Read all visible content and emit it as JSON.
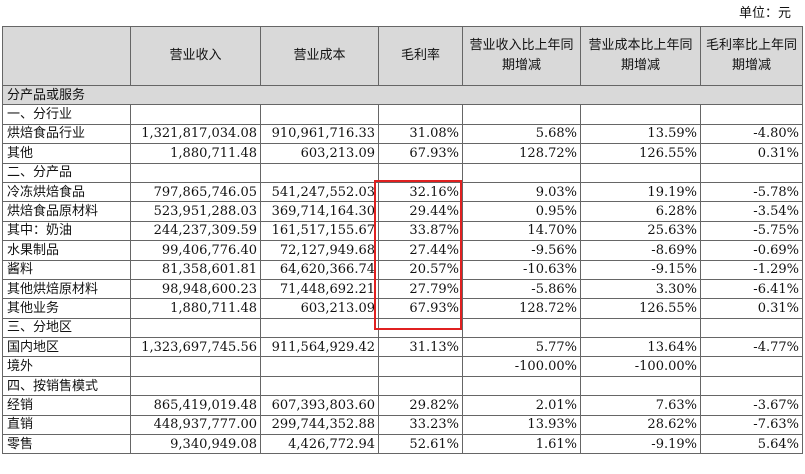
{
  "unit_label": "单位：元",
  "headers": [
    "",
    "营业收入",
    "营业成本",
    "毛利率",
    "营业收入比上年同期增减",
    "营业成本比上年同期增减",
    "毛利率比上年同期增减"
  ],
  "rows": [
    {
      "type": "section",
      "label": "分产品或服务"
    },
    {
      "type": "group",
      "label": "一、分行业"
    },
    {
      "type": "data",
      "cells": [
        "烘焙食品行业",
        "1,321,817,034.08",
        "910,961,716.33",
        "31.08%",
        "5.68%",
        "13.59%",
        "-4.80%"
      ]
    },
    {
      "type": "data",
      "cells": [
        "其他",
        "1,880,711.48",
        "603,213.09",
        "67.93%",
        "128.72%",
        "126.55%",
        "0.31%"
      ]
    },
    {
      "type": "group",
      "label": "二、分产品"
    },
    {
      "type": "data",
      "cells": [
        "冷冻烘焙食品",
        "797,865,746.05",
        "541,247,552.03",
        "32.16%",
        "9.03%",
        "19.19%",
        "-5.78%"
      ]
    },
    {
      "type": "data",
      "cells": [
        "烘焙食品原材料",
        "523,951,288.03",
        "369,714,164.30",
        "29.44%",
        "0.95%",
        "6.28%",
        "-3.54%"
      ]
    },
    {
      "type": "data",
      "cells": [
        "其中：奶油",
        "244,237,309.59",
        "161,517,155.67",
        "33.87%",
        "14.70%",
        "25.63%",
        "-5.75%"
      ]
    },
    {
      "type": "data",
      "cells": [
        "水果制品",
        "99,406,776.40",
        "72,127,949.68",
        "27.44%",
        "-9.56%",
        "-8.69%",
        "-0.69%"
      ]
    },
    {
      "type": "data",
      "cells": [
        "酱料",
        "81,358,601.81",
        "64,620,366.74",
        "20.57%",
        "-10.63%",
        "-9.15%",
        "-1.29%"
      ]
    },
    {
      "type": "data",
      "cells": [
        "其他烘焙原材料",
        "98,948,600.23",
        "71,448,692.21",
        "27.79%",
        "-5.86%",
        "3.30%",
        "-6.41%"
      ]
    },
    {
      "type": "data",
      "cells": [
        "其他业务",
        "1,880,711.48",
        "603,213.09",
        "67.93%",
        "128.72%",
        "126.55%",
        "0.31%"
      ]
    },
    {
      "type": "group",
      "label": "三、分地区"
    },
    {
      "type": "data",
      "cells": [
        "国内地区",
        "1,323,697,745.56",
        "911,564,929.42",
        "31.13%",
        "5.77%",
        "13.64%",
        "-4.77%"
      ]
    },
    {
      "type": "data",
      "cells": [
        "境外",
        "",
        "",
        "",
        "-100.00%",
        "-100.00%",
        ""
      ]
    },
    {
      "type": "group",
      "label": "四、按销售模式"
    },
    {
      "type": "data",
      "cells": [
        "经销",
        "865,419,019.48",
        "607,393,803.60",
        "29.82%",
        "2.01%",
        "7.63%",
        "-3.67%"
      ]
    },
    {
      "type": "data",
      "cells": [
        "直销",
        "448,937,777.00",
        "299,744,352.88",
        "33.23%",
        "13.93%",
        "28.62%",
        "-7.63%"
      ]
    },
    {
      "type": "data",
      "cells": [
        "零售",
        "9,340,949.08",
        "4,426,772.94",
        "52.61%",
        "1.61%",
        "-9.19%",
        "5.64%"
      ]
    }
  ],
  "highlight_color": "#e02020"
}
